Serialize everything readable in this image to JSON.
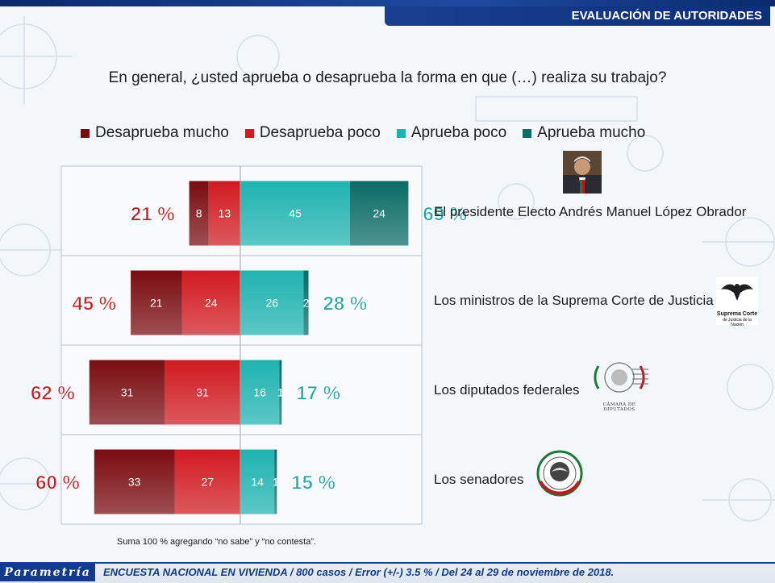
{
  "header": {
    "title": "EVALUACIÓN DE AUTORIDADES"
  },
  "question": "En general, ¿usted aprueba o desaprueba la forma en que (…) realiza su trabajo?",
  "colors": {
    "desaprueba_mucho": "#7a0c10",
    "desaprueba_poco": "#d11a20",
    "aprueba_poco": "#1fb3b0",
    "aprueba_mucho": "#0b6b66",
    "total_neg": "#d11a20",
    "total_pos": "#1fa8a5"
  },
  "chart_data": {
    "type": "bar",
    "orientation": "horizontal-diverging",
    "stacked": true,
    "legend": "top",
    "categories": [
      "El presidente Electo Andrés Manuel López Obrador",
      "Los ministros de la Suprema Corte de Justicia",
      "Los diputados federales",
      "Los senadores"
    ],
    "series": [
      {
        "name": "Desaprueba mucho",
        "values": [
          8,
          21,
          31,
          33
        ],
        "labels": [
          "8",
          "21",
          "31",
          "33"
        ]
      },
      {
        "name": "Desaprueba poco",
        "values": [
          13,
          24,
          31,
          27
        ],
        "labels": [
          "13",
          "24",
          "31",
          "27"
        ]
      },
      {
        "name": "Aprueba poco",
        "values": [
          45,
          26,
          16,
          14
        ],
        "labels": [
          "45",
          "26",
          "16",
          "14"
        ]
      },
      {
        "name": "Aprueba mucho",
        "values": [
          24,
          2,
          1,
          1
        ],
        "labels": [
          "24",
          "2",
          "1",
          "1"
        ]
      }
    ],
    "totals_desaprueba": [
      "21 %",
      "45 %",
      "62 %",
      "60 %"
    ],
    "totals_aprueba": [
      "69 %",
      "28 %",
      "17 %",
      "15 %"
    ]
  },
  "logos": {
    "supreme_court": [
      "Suprema Corte",
      "de Justicia de la Nación"
    ],
    "camara": "CÁMARA DE DIPUTADOS"
  },
  "note": "Suma 100 %  agregando “no sabe” y “no contesta”.",
  "footer": {
    "brand": "Parametría",
    "text": "ENCUESTA NACIONAL EN VIVIENDA / 800 casos / Error (+/-) 3.5 % / Del 24 al 29 de noviembre de 2018."
  }
}
